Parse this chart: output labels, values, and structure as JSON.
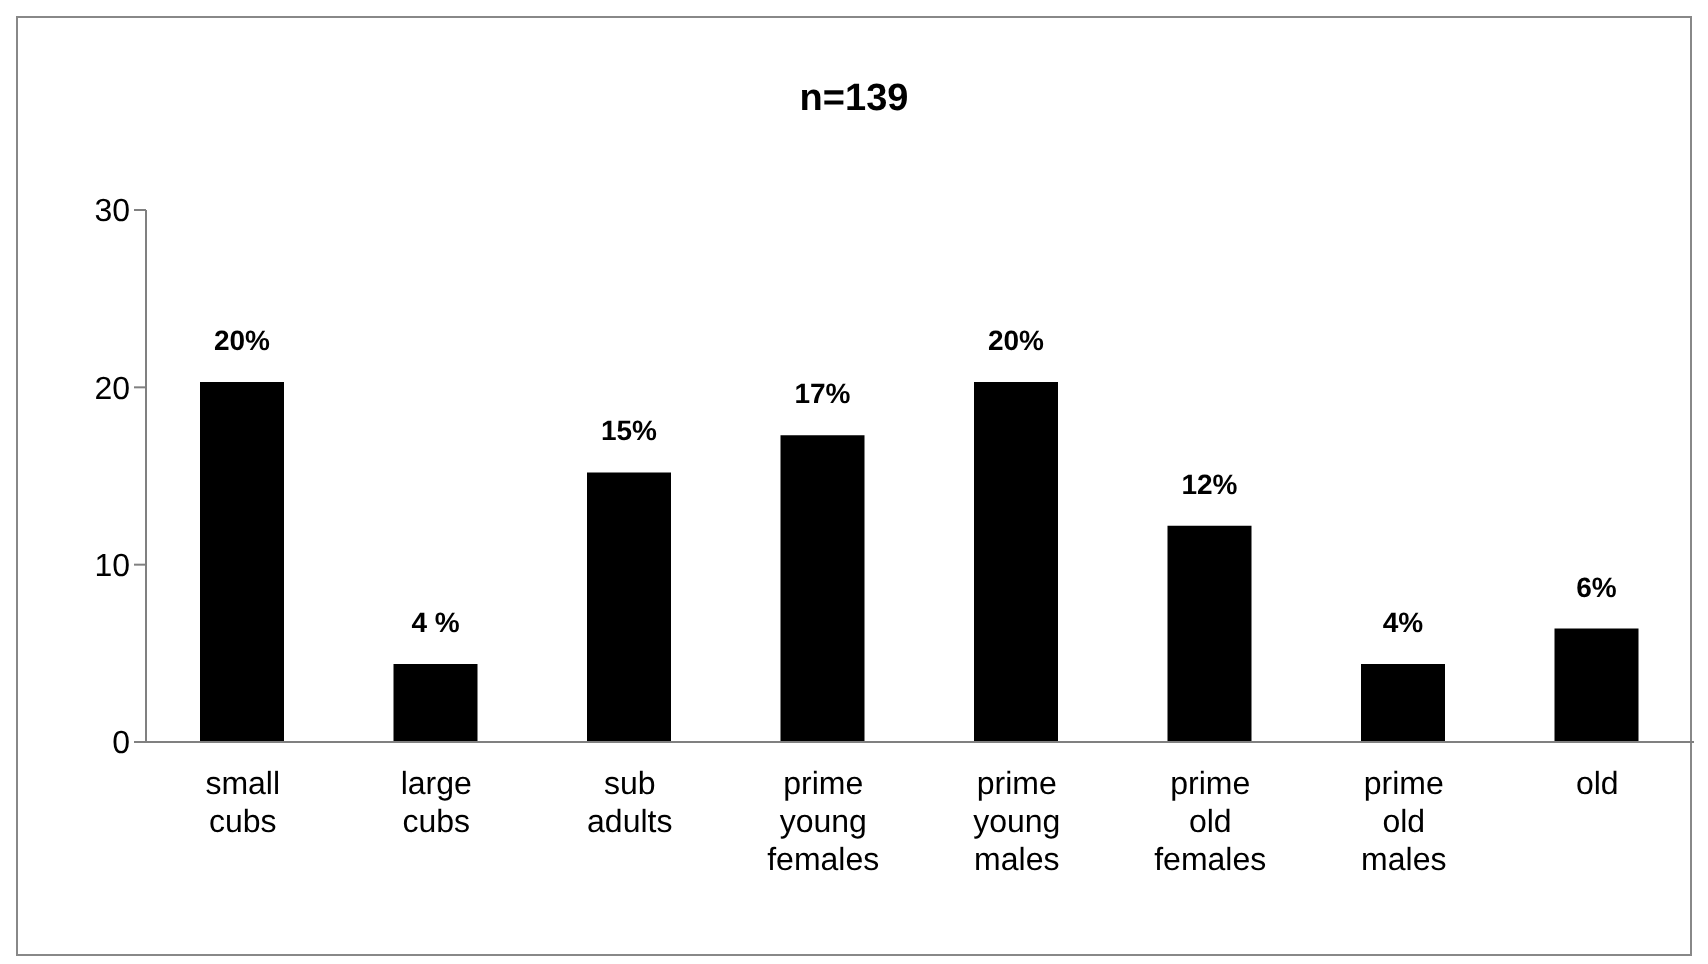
{
  "chart_data": {
    "type": "bar",
    "title": "n=139",
    "categories": [
      "small cubs",
      "large cubs",
      "sub adults",
      "prime young females",
      "prime young males",
      "prime old females",
      "prime old males",
      "old"
    ],
    "values": [
      20.3,
      4.4,
      15.2,
      17.3,
      20.3,
      12.2,
      4.4,
      6.4
    ],
    "value_labels": [
      "20%",
      "4 %",
      "15%",
      "17%",
      "20%",
      "12%",
      "4%",
      "6%"
    ],
    "color": "#000000",
    "ylim": [
      0,
      30
    ],
    "yticks": [
      0,
      10,
      20,
      30
    ],
    "grid": false,
    "legend": false
  }
}
